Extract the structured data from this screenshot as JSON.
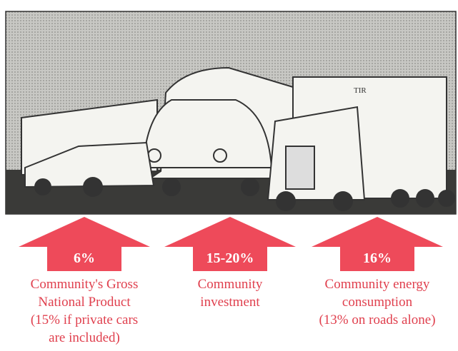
{
  "panels": [
    {
      "label": "6%",
      "caption": [
        "Community's Gross",
        "National Product",
        "(15% if private cars",
        "are included)"
      ]
    },
    {
      "label": "15-20%",
      "caption": [
        "Community",
        "investment"
      ]
    },
    {
      "label": "16%",
      "caption": [
        "Community energy",
        "consumption",
        "(13% on roads alone)"
      ]
    }
  ]
}
